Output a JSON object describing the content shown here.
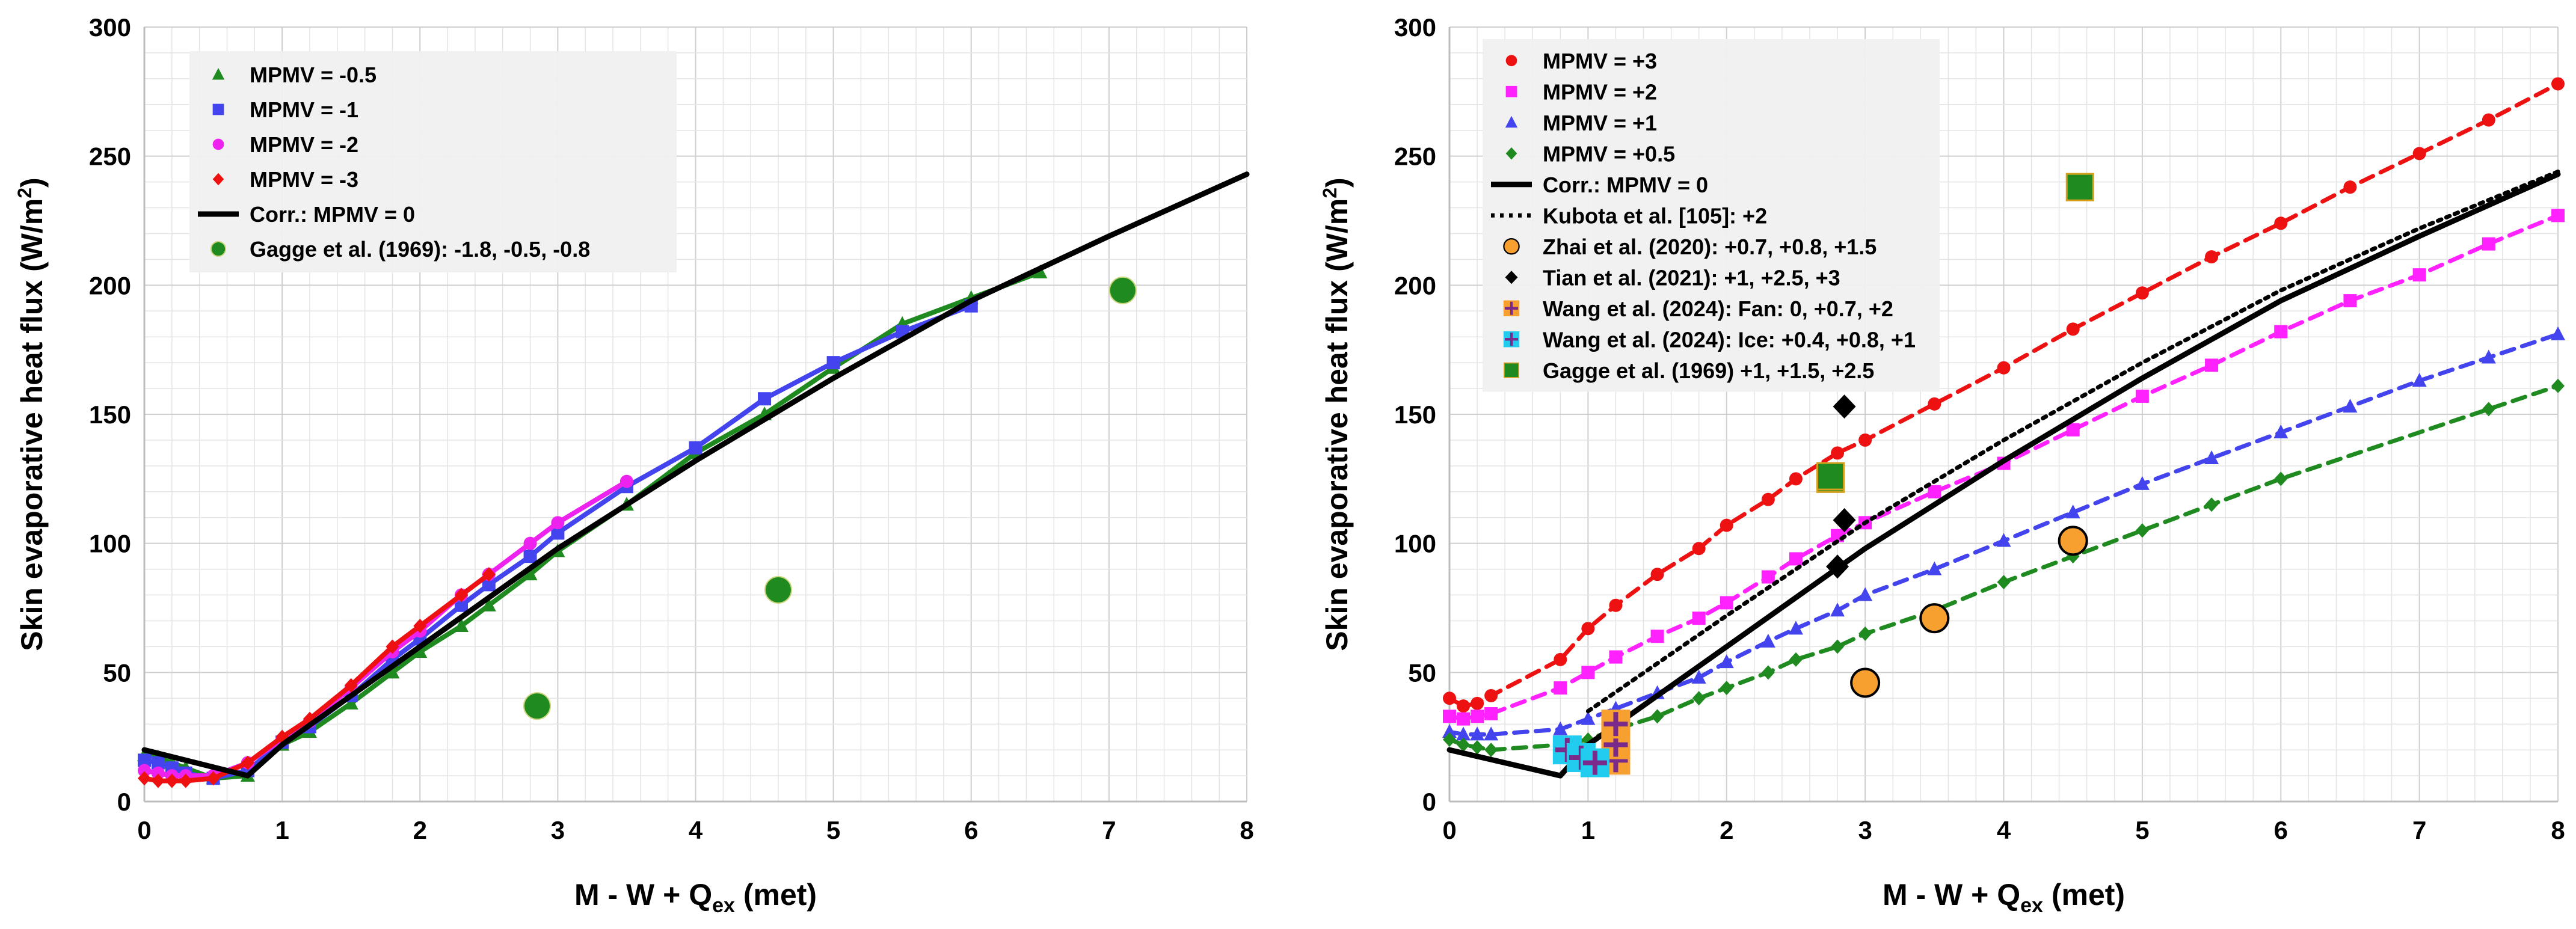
{
  "chart_data": [
    {
      "type": "scatter",
      "panel": "left",
      "xlabel": "M - W + Q",
      "xlabel_sub": "ex",
      "xlabel_suffix": " (met)",
      "ylabel": "Skin evaporative heat flux  (W/m",
      "ylabel_sup": "2",
      "ylabel_suffix": ")",
      "xlim": [
        0,
        8
      ],
      "ylim": [
        0,
        300
      ],
      "xticks": [
        "0",
        "1",
        "2",
        "3",
        "4",
        "5",
        "6",
        "7",
        "8"
      ],
      "yticks": [
        "0",
        "50",
        "100",
        "150",
        "200",
        "250",
        "300"
      ],
      "grid": true,
      "legend_position": "top-left",
      "series": [
        {
          "name": "MPMV = -0.5",
          "marker": "triangle",
          "color": "#1f8a1f",
          "line": "solid",
          "x": [
            0,
            0.1,
            0.2,
            0.3,
            0.5,
            0.75,
            1,
            1.2,
            1.5,
            1.8,
            2,
            2.3,
            2.5,
            2.8,
            3,
            3.5,
            4,
            4.5,
            5,
            5.5,
            6,
            6.5
          ],
          "y": [
            18,
            17,
            15,
            13,
            9,
            10,
            22,
            27,
            38,
            50,
            58,
            68,
            76,
            88,
            97,
            115,
            135,
            150,
            168,
            185,
            195,
            205
          ]
        },
        {
          "name": "MPMV = -1",
          "marker": "square",
          "color": "#4444ee",
          "line": "solid",
          "x": [
            0,
            0.1,
            0.2,
            0.3,
            0.5,
            0.75,
            1,
            1.2,
            1.5,
            1.8,
            2,
            2.3,
            2.5,
            2.8,
            3,
            3.5,
            4,
            4.5,
            5,
            5.5,
            6
          ],
          "y": [
            16,
            15,
            13,
            11,
            9,
            12,
            23,
            29,
            41,
            55,
            63,
            76,
            84,
            95,
            104,
            122,
            137,
            156,
            170,
            182,
            192
          ]
        },
        {
          "name": "MPMV = -2",
          "marker": "circle",
          "color": "#ee22ee",
          "line": "solid",
          "x": [
            0,
            0.1,
            0.2,
            0.3,
            0.5,
            0.75,
            1,
            1.2,
            1.5,
            1.8,
            2,
            2.3,
            2.5,
            2.8,
            3,
            3.5
          ],
          "y": [
            12,
            11,
            10,
            10,
            10,
            15,
            24,
            31,
            44,
            58,
            66,
            80,
            88,
            100,
            108,
            124
          ]
        },
        {
          "name": "MPMV = -3",
          "marker": "diamond",
          "color": "#ee1111",
          "line": "solid",
          "x": [
            0,
            0.1,
            0.2,
            0.3,
            0.5,
            0.75,
            1,
            1.2,
            1.5,
            1.8,
            2,
            2.3,
            2.5
          ],
          "y": [
            9,
            8,
            8,
            8,
            9,
            15,
            25,
            32,
            45,
            60,
            68,
            80,
            88
          ]
        },
        {
          "name": "Corr.: MPMV = 0",
          "marker": "none",
          "color": "#000000",
          "line": "solid-thick",
          "x": [
            0,
            0.75,
            1,
            2,
            3,
            4,
            5,
            6,
            7,
            8
          ],
          "y": [
            20,
            10,
            22,
            60,
            98,
            132,
            164,
            194,
            219,
            243
          ]
        },
        {
          "name": "Gagge et al. (1969): -1.8, -0.5, -0.8",
          "marker": "bigcircle",
          "color": "#1f8a1f",
          "line": "none",
          "x": [
            2.85,
            4.6,
            7.1
          ],
          "y": [
            37,
            82,
            198
          ]
        }
      ]
    },
    {
      "type": "scatter",
      "panel": "right",
      "xlabel": "M - W + Q",
      "xlabel_sub": "ex",
      "xlabel_suffix": " (met)",
      "ylabel": "Skin evaporative heat flux  (W/m",
      "ylabel_sup": "2",
      "ylabel_suffix": ")",
      "xlim": [
        0,
        8
      ],
      "ylim": [
        0,
        300
      ],
      "xticks": [
        "0",
        "1",
        "2",
        "3",
        "4",
        "5",
        "6",
        "7",
        "8"
      ],
      "yticks": [
        "0",
        "50",
        "100",
        "150",
        "200",
        "250",
        "300"
      ],
      "grid": true,
      "legend_position": "top-left",
      "series": [
        {
          "name": "MPMV = +3",
          "marker": "circle",
          "color": "#ee1111",
          "line": "dashed",
          "x": [
            0,
            0.1,
            0.2,
            0.3,
            0.8,
            1,
            1.2,
            1.5,
            1.8,
            2,
            2.3,
            2.5,
            2.8,
            3,
            3.5,
            4,
            4.5,
            5,
            5.5,
            6,
            6.5,
            7,
            7.5,
            8
          ],
          "y": [
            40,
            37,
            38,
            41,
            55,
            67,
            76,
            88,
            98,
            107,
            117,
            125,
            135,
            140,
            154,
            168,
            183,
            197,
            211,
            224,
            238,
            251,
            264,
            278
          ]
        },
        {
          "name": "MPMV = +2",
          "marker": "square",
          "color": "#ff22ff",
          "line": "dashed",
          "x": [
            0,
            0.1,
            0.2,
            0.3,
            0.8,
            1,
            1.2,
            1.5,
            1.8,
            2,
            2.3,
            2.5,
            2.8,
            3,
            3.5,
            4,
            4.5,
            5,
            5.5,
            6,
            6.5,
            7,
            7.5,
            8
          ],
          "y": [
            33,
            32,
            33,
            34,
            44,
            50,
            56,
            64,
            71,
            77,
            87,
            94,
            103,
            108,
            120,
            131,
            144,
            157,
            169,
            182,
            194,
            204,
            216,
            227
          ]
        },
        {
          "name": "MPMV = +1",
          "marker": "triangle",
          "color": "#4444ee",
          "line": "dashed",
          "x": [
            0,
            0.1,
            0.2,
            0.3,
            0.8,
            1,
            1.2,
            1.5,
            1.8,
            2,
            2.3,
            2.5,
            2.8,
            3,
            3.5,
            4,
            4.5,
            5,
            5.5,
            6,
            6.5,
            7,
            7.5,
            8
          ],
          "y": [
            27,
            26,
            26,
            26,
            28,
            32,
            36,
            42,
            48,
            54,
            62,
            67,
            74,
            80,
            90,
            101,
            112,
            123,
            133,
            143,
            153,
            163,
            172,
            181
          ]
        },
        {
          "name": "MPMV = +0.5",
          "marker": "diamond",
          "color": "#1f8a1f",
          "line": "dashed",
          "x": [
            0,
            0.1,
            0.2,
            0.3,
            0.8,
            1,
            1.2,
            1.5,
            1.8,
            2,
            2.3,
            2.5,
            2.8,
            3,
            3.5,
            4,
            4.5,
            5,
            5.5,
            6,
            7.5,
            8
          ],
          "y": [
            24,
            22,
            21,
            20,
            22,
            24,
            28,
            33,
            40,
            44,
            50,
            55,
            60,
            65,
            74,
            85,
            95,
            105,
            115,
            125,
            152,
            161
          ]
        },
        {
          "name": "Corr.: MPMV = 0",
          "marker": "none",
          "color": "#000000",
          "line": "solid-thick",
          "x": [
            0,
            0.8,
            1,
            2,
            3,
            4,
            5,
            6,
            7,
            8
          ],
          "y": [
            20,
            10,
            22,
            60,
            98,
            132,
            164,
            194,
            219,
            243
          ]
        },
        {
          "name": "Kubota et al. [105]: +2",
          "marker": "none",
          "color": "#000000",
          "line": "dotted",
          "x": [
            1,
            2,
            3,
            4,
            5,
            6,
            7,
            8
          ],
          "y": [
            35,
            72,
            108,
            140,
            170,
            198,
            222,
            244
          ]
        },
        {
          "name": "Zhai et al. (2020): +0.7, +0.8, +1.5",
          "marker": "orangecircle",
          "color": "#f7a030",
          "line": "none",
          "x": [
            3,
            3.5,
            4.5
          ],
          "y": [
            46,
            71,
            101
          ]
        },
        {
          "name": "Tian et al. (2021): +1, +2.5, +3",
          "marker": "bigdiamond",
          "color": "#000000",
          "line": "none",
          "x": [
            2.8,
            2.85,
            2.85
          ],
          "y": [
            91,
            109,
            153
          ]
        },
        {
          "name": "Wang et al. (2024): Fan: 0, +0.7, +2",
          "marker": "plus-orange",
          "color": "#f7a030",
          "line": "none",
          "x": [
            1.2,
            1.2,
            1.2
          ],
          "y": [
            16,
            22,
            30
          ]
        },
        {
          "name": "Wang et al. (2024): Ice: +0.4, +0.8, +1",
          "marker": "plus-cyan",
          "color": "#22ccee",
          "line": "none",
          "x": [
            0.85,
            0.95,
            1.05
          ],
          "y": [
            20,
            17,
            15
          ]
        },
        {
          "name": "Gagge et al. (1969) +1, +1.5, +2.5",
          "marker": "bigsquare",
          "color": "#1f8a1f",
          "line": "none",
          "x": [
            2.75,
            2.75,
            4.55
          ],
          "y": [
            125,
            126,
            238
          ]
        }
      ]
    }
  ]
}
